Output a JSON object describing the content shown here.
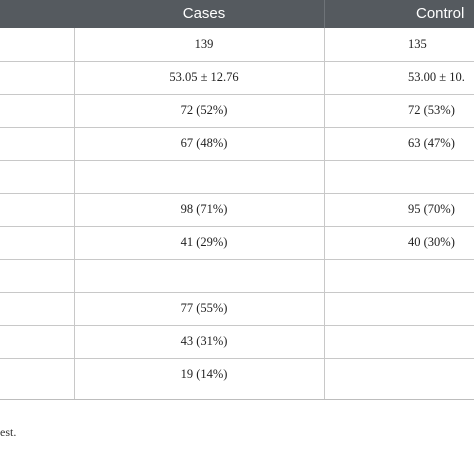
{
  "table": {
    "columns": {
      "cases": "Cases",
      "control": "Control"
    },
    "rows": [
      {
        "cases": "139",
        "control": "135"
      },
      {
        "cases": "53.05 ± 12.76",
        "control": "53.00 ± 10."
      },
      {
        "cases": "72 (52%)",
        "control": "72 (53%)"
      },
      {
        "cases": "67 (48%)",
        "control": "63 (47%)"
      },
      {
        "cases": "",
        "control": ""
      },
      {
        "cases": "98 (71%)",
        "control": "95 (70%)"
      },
      {
        "cases": "41 (29%)",
        "control": "40 (30%)"
      },
      {
        "cases": "",
        "control": ""
      },
      {
        "cases": "77 (55%)",
        "control": ""
      },
      {
        "cases": "43 (31%)",
        "control": ""
      },
      {
        "cases": "19 (14%)",
        "control": ""
      }
    ]
  },
  "footnote": "est.",
  "colors": {
    "header_background": "#555a5f",
    "header_text": "#ffffff",
    "grid_line": "#c8c8c8"
  }
}
